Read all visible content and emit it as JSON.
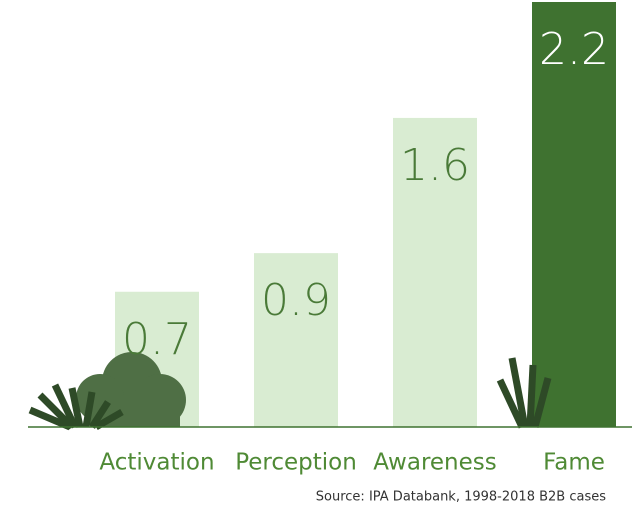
{
  "chart_data": {
    "type": "bar",
    "categories": [
      "Activation",
      "Perception",
      "Awareness",
      "Fame"
    ],
    "values": [
      0.7,
      0.9,
      1.6,
      2.2
    ],
    "colors": [
      "#d9ecd2",
      "#d9ecd2",
      "#d9ecd2",
      "#3f7230"
    ],
    "label_colors": [
      "#4a7a38",
      "#4a7a38",
      "#4a7a38",
      "#ffffff"
    ],
    "source": "Source: IPA Databank, 1998-2018 B2B cases"
  }
}
